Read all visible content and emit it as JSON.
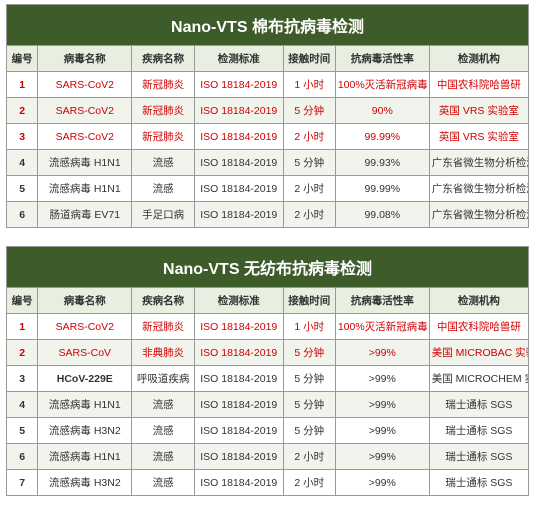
{
  "colors": {
    "header_bg": "#3e5b2a",
    "header_text": "#ffffff",
    "th_bg": "#e8efe1",
    "row_alt_bg": "#f0f4ec",
    "highlight_text": "#d00000",
    "normal_text": "#333333",
    "border": "#999999"
  },
  "columns": [
    {
      "key": "num",
      "label": "编号"
    },
    {
      "key": "virus",
      "label": "病毒名称"
    },
    {
      "key": "disease",
      "label": "疾病名称"
    },
    {
      "key": "standard",
      "label": "检测标准"
    },
    {
      "key": "time",
      "label": "接触时间"
    },
    {
      "key": "rate",
      "label": "抗病毒活性率"
    },
    {
      "key": "org",
      "label": "检测机构"
    }
  ],
  "tables": [
    {
      "title": "Nano-VTS 棉布抗病毒检测",
      "rows": [
        {
          "hl": true,
          "num": "1",
          "virus": "SARS-CoV2",
          "disease": "新冠肺炎",
          "standard": "ISO 18184-2019",
          "time": "1 小时",
          "rate": "100%灭活新冠病毒",
          "org": "中国农科院哈兽研"
        },
        {
          "hl": true,
          "num": "2",
          "virus": "SARS-CoV2",
          "disease": "新冠肺炎",
          "standard": "ISO 18184-2019",
          "time": "5 分钟",
          "rate": "90%",
          "org": "英国 VRS 实验室"
        },
        {
          "hl": true,
          "num": "3",
          "virus": "SARS-CoV2",
          "disease": "新冠肺炎",
          "standard": "ISO 18184-2019",
          "time": "2 小时",
          "rate": "99.99%",
          "org": "英国 VRS 实验室"
        },
        {
          "hl": false,
          "num": "4",
          "virus": "流感病毒 H1N1",
          "disease": "流感",
          "standard": "ISO 18184-2019",
          "time": "5 分钟",
          "rate": "99.93%",
          "org": "广东省微生物分析检测中心"
        },
        {
          "hl": false,
          "num": "5",
          "virus": "流感病毒 H1N1",
          "disease": "流感",
          "standard": "ISO 18184-2019",
          "time": "2 小时",
          "rate": "99.99%",
          "org": "广东省微生物分析检测中心"
        },
        {
          "hl": false,
          "num": "6",
          "virus": "肠道病毒 EV71",
          "disease": "手足口病",
          "standard": "ISO 18184-2019",
          "time": "2 小时",
          "rate": "99.08%",
          "org": "广东省微生物分析检测中心"
        }
      ]
    },
    {
      "title": "Nano-VTS 无纺布抗病毒检测",
      "rows": [
        {
          "hl": true,
          "num": "1",
          "virus": "SARS-CoV2",
          "disease": "新冠肺炎",
          "standard": "ISO 18184-2019",
          "time": "1 小时",
          "rate": "100%灭活新冠病毒",
          "org": "中国农科院哈兽研"
        },
        {
          "hl": true,
          "num": "2",
          "virus": "SARS-CoV",
          "disease": "非典肺炎",
          "standard": "ISO 18184-2019",
          "time": "5 分钟",
          "rate": ">99%",
          "org": "美国 MICROBAC 实验室"
        },
        {
          "hl": false,
          "partial": true,
          "num": "3",
          "virus": "HCoV-229E",
          "disease": "呼吸道疾病",
          "standard": "ISO 18184-2019",
          "time": "5 分钟",
          "rate": ">99%",
          "org": "美国 MICROCHEM 实验室"
        },
        {
          "hl": false,
          "num": "4",
          "virus": "流感病毒 H1N1",
          "disease": "流感",
          "standard": "ISO 18184-2019",
          "time": "5 分钟",
          "rate": ">99%",
          "org": "瑞士通标 SGS"
        },
        {
          "hl": false,
          "num": "5",
          "virus": "流感病毒 H3N2",
          "disease": "流感",
          "standard": "ISO 18184-2019",
          "time": "5 分钟",
          "rate": ">99%",
          "org": "瑞士通标 SGS"
        },
        {
          "hl": false,
          "num": "6",
          "virus": "流感病毒 H1N1",
          "disease": "流感",
          "standard": "ISO 18184-2019",
          "time": "2 小时",
          "rate": ">99%",
          "org": "瑞士通标 SGS"
        },
        {
          "hl": false,
          "num": "7",
          "virus": "流感病毒 H3N2",
          "disease": "流感",
          "standard": "ISO 18184-2019",
          "time": "2 小时",
          "rate": ">99%",
          "org": "瑞士通标 SGS"
        }
      ]
    }
  ]
}
